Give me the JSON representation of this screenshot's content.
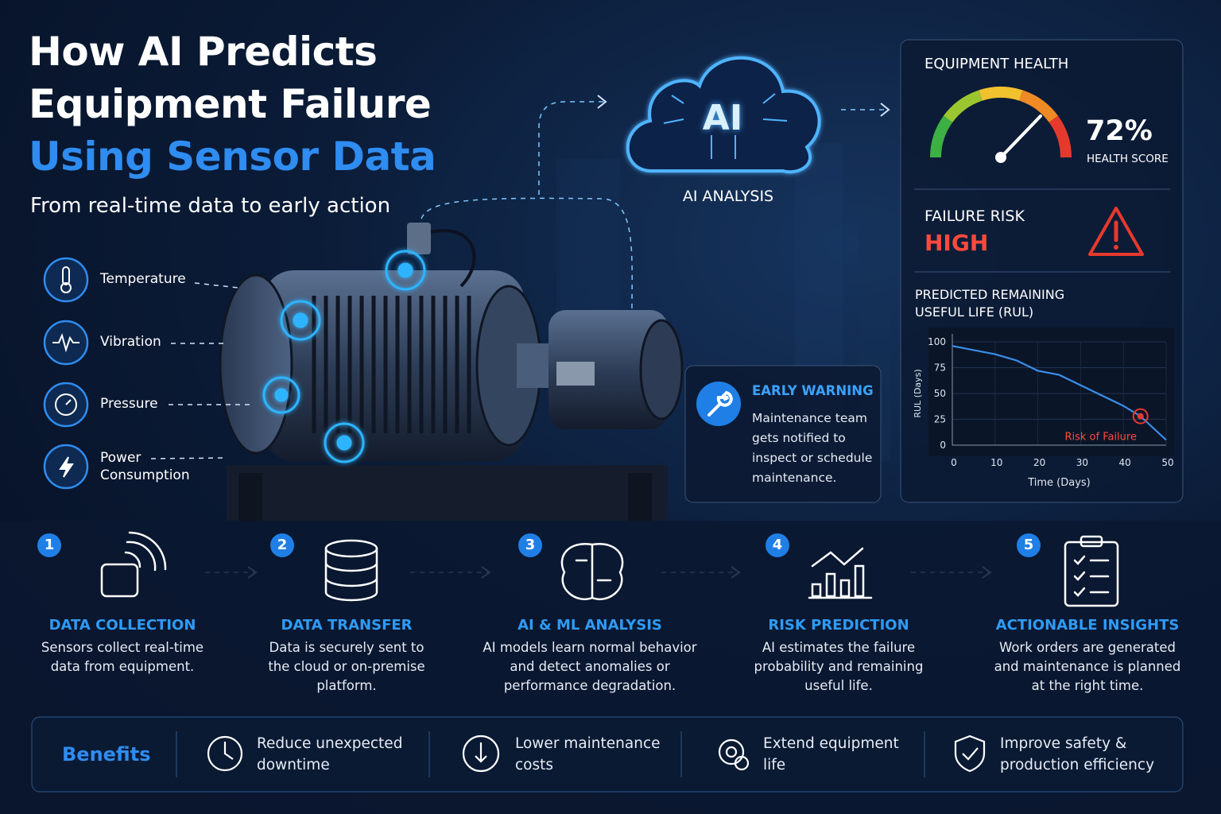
{
  "header": {
    "title_line1": "How AI Predicts",
    "title_line2": "Equipment Failure",
    "title_line3": "Using Sensor Data",
    "subtitle": "From real-time data to early action"
  },
  "sensors": [
    {
      "label": "Temperature"
    },
    {
      "label": "Vibration"
    },
    {
      "label": "Pressure"
    },
    {
      "label": "Power Consumption"
    }
  ],
  "ai": {
    "icon_text": "AI",
    "label": "AI ANALYSIS"
  },
  "panel": {
    "title": "EQUIPMENT HEALTH",
    "score": "72%",
    "score_label": "HEALTH SCORE",
    "risk_title": "FAILURE RISK",
    "risk_level": "HIGH",
    "rul_title": "PREDICTED REMAINING USEFUL LIFE (RUL)",
    "rul_chart": {
      "type": "line",
      "y_label": "RUL (Days)",
      "x_label": "Time (Days)",
      "annotation": "Risk of Failure",
      "color": "#3a8ee8",
      "grid": true,
      "x": [
        0,
        5,
        10,
        15,
        20,
        25,
        30,
        35,
        40,
        44,
        50
      ],
      "values": [
        96,
        92,
        88,
        82,
        72,
        68,
        58,
        48,
        38,
        28,
        5
      ],
      "xlim": [
        0,
        50
      ],
      "ylim": [
        0,
        100
      ],
      "xticks": [
        0,
        10,
        20,
        30,
        40,
        50
      ],
      "yticks": [
        0,
        25,
        50,
        75,
        100
      ]
    }
  },
  "warning": {
    "title": "EARLY WARNING",
    "text": "Maintenance team gets notified to inspect or schedule maintenance."
  },
  "steps": [
    {
      "number": "1",
      "title": "DATA COLLECTION",
      "text": "Sensors collect real-time data from equipment."
    },
    {
      "number": "2",
      "title": "DATA TRANSFER",
      "text": "Data is securely sent to the cloud or on-premise platform."
    },
    {
      "number": "3",
      "title": "AI & ML ANALYSIS",
      "text": "AI models learn normal behavior and detect anomalies or performance degradation."
    },
    {
      "number": "4",
      "title": "RISK PREDICTION",
      "text": "AI estimates the failure probability and remaining useful life."
    },
    {
      "number": "5",
      "title": "ACTIONABLE INSIGHTS",
      "text": "Work orders are generated and maintenance is planned at the right time."
    }
  ],
  "benefits": {
    "title": "Benefits",
    "items": [
      "Reduce unexpected downtime",
      "Lower maintenance costs",
      "Extend equipment life",
      "Improve safety & production efficiency"
    ]
  }
}
